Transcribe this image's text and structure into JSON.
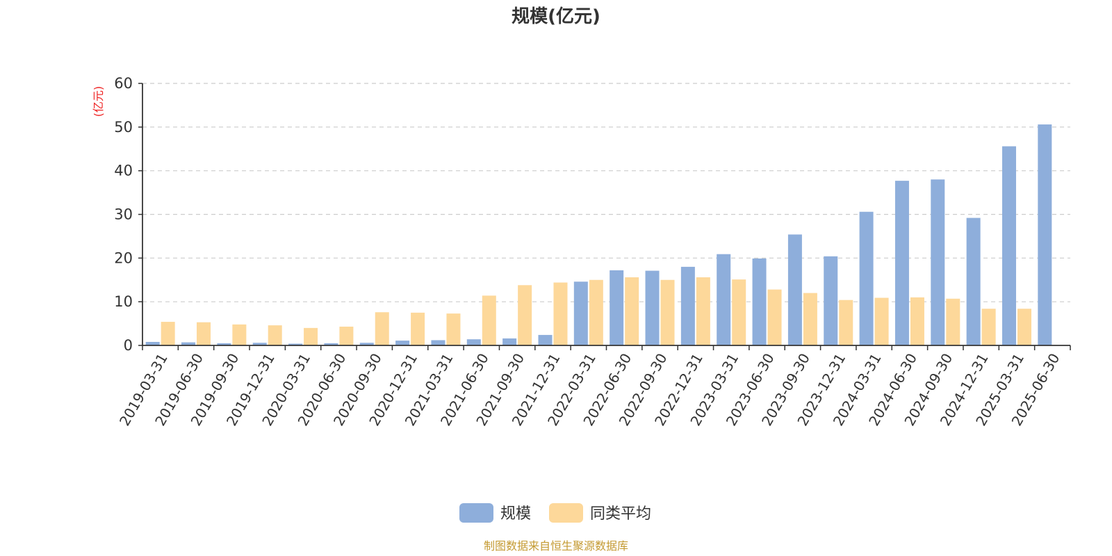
{
  "chart_data": {
    "type": "bar",
    "title": "规模(亿元)",
    "ylabel": "(亿元)",
    "ylim": [
      0,
      60
    ],
    "yticks": [
      0,
      10,
      20,
      30,
      40,
      50,
      60
    ],
    "grid": true,
    "legend_position": "bottom",
    "categories": [
      "2019-03-31",
      "2019-06-30",
      "2019-09-30",
      "2019-12-31",
      "2020-03-31",
      "2020-06-30",
      "2020-09-30",
      "2020-12-31",
      "2021-03-31",
      "2021-06-30",
      "2021-09-30",
      "2021-12-31",
      "2022-03-31",
      "2022-06-30",
      "2022-09-30",
      "2022-12-31",
      "2023-03-31",
      "2023-06-30",
      "2023-09-30",
      "2023-12-31",
      "2024-03-31",
      "2024-06-30",
      "2024-09-30",
      "2024-12-31",
      "2025-03-31",
      "2025-06-30"
    ],
    "series": [
      {
        "name": "规模",
        "color": "#8eaedb",
        "values": [
          0.8,
          0.7,
          0.5,
          0.6,
          0.4,
          0.5,
          0.6,
          1.1,
          1.2,
          1.4,
          1.6,
          2.4,
          14.6,
          17.2,
          17.1,
          18.0,
          20.9,
          19.9,
          25.4,
          20.4,
          30.6,
          37.7,
          38.0,
          29.2,
          45.6,
          50.6
        ]
      },
      {
        "name": "同类平均",
        "color": "#fdd89a",
        "values": [
          5.4,
          5.3,
          4.8,
          4.6,
          4.0,
          4.3,
          7.6,
          7.5,
          7.3,
          11.4,
          13.8,
          14.4,
          15.0,
          15.6,
          15.0,
          15.6,
          15.1,
          12.8,
          12.0,
          10.4,
          10.9,
          11.0,
          10.7,
          8.4,
          8.4,
          null
        ]
      }
    ],
    "source": "制图数据来自恒生聚源数据库"
  }
}
